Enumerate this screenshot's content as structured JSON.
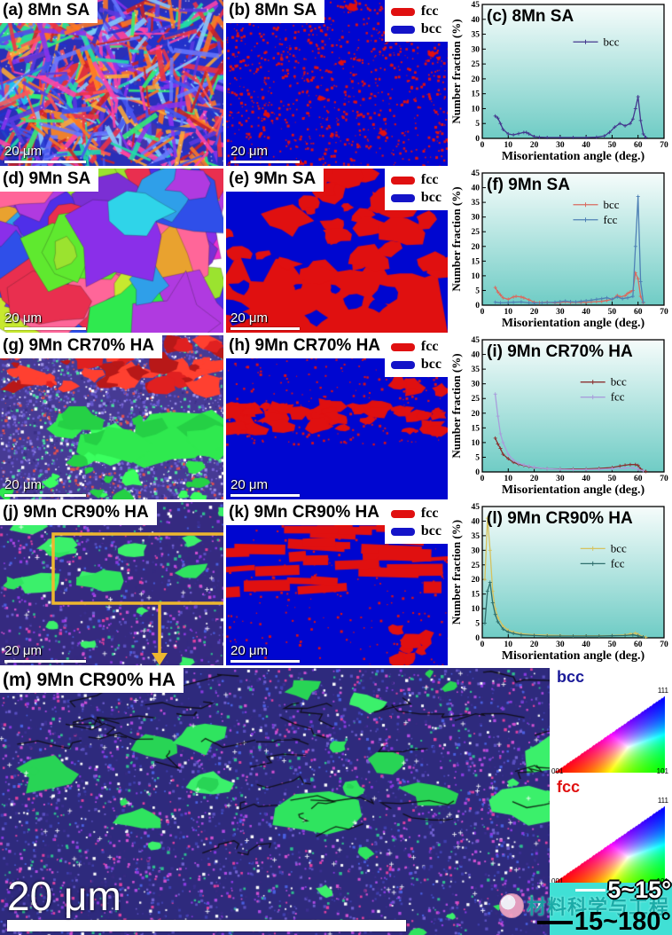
{
  "panels": {
    "a": {
      "label": "(a) 8Mn SA",
      "scalebar": "20 μm",
      "texture": {
        "seed": 11,
        "mode": "laths",
        "bg": "#2a2fb8",
        "palette": [
          "#2233cc",
          "#4455ee",
          "#5a3ae0",
          "#ee3344",
          "#ff7722",
          "#22ddaa",
          "#33ee77",
          "#ff44aa",
          "#88ccff",
          "#ffaa33",
          "#cc2222",
          "#6677ff",
          "#8833ee",
          "#ff5555"
        ],
        "patches": [
          [
            "#2fe98f",
            0.13,
            0.17,
            0.2,
            0.13
          ],
          [
            "#22ccee",
            0.05,
            0.55,
            0.12,
            0.1
          ],
          [
            "#ee3333",
            0.38,
            0.5,
            0.22,
            0.13
          ],
          [
            "#ff8822",
            0.28,
            0.76,
            0.16,
            0.1
          ],
          [
            "#2233cc",
            0.78,
            0.36,
            0.3,
            0.26
          ],
          [
            "#4433aa",
            0.62,
            0.82,
            0.22,
            0.13
          ],
          [
            "#ff4499",
            0.52,
            0.22,
            0.1,
            0.08
          ]
        ]
      }
    },
    "b": {
      "label": "(b) 8Mn SA",
      "scalebar": "20 μm",
      "legend_fcc": "fcc",
      "legend_bcc": "bcc",
      "fcc_color": "#e01010",
      "bcc_color": "#1414c8",
      "texture": {
        "seed": 66,
        "mode": "dots",
        "bg": "#0006d0",
        "fg": "#e01010",
        "count": 950
      }
    },
    "c": {
      "title": "(c) 8Mn SA"
    },
    "d": {
      "label": "(d) 9Mn SA",
      "scalebar": "20 μm",
      "texture": {
        "seed": 22,
        "mode": "grains",
        "bg": "#ffffff",
        "palette": [
          "#7b2fd4",
          "#b03ae0",
          "#2fe94f",
          "#9be32f",
          "#2f4fe9",
          "#e92f4f",
          "#2fd4e9",
          "#e9a22f",
          "#e92fd4",
          "#5fe92f",
          "#4f2fe9",
          "#ff6699",
          "#c7e92f",
          "#2f9fe9",
          "#8a2fe9"
        ]
      }
    },
    "e": {
      "label": "(e) 9Mn SA",
      "scalebar": "20 μm",
      "legend_fcc": "fcc",
      "legend_bcc": "bcc",
      "fcc_color": "#e01010",
      "bcc_color": "#1414c8",
      "texture": {
        "seed": 77,
        "mode": "mass",
        "bg": "#0006d0",
        "fg": "#e01010"
      }
    },
    "f": {
      "title": "(f) 9Mn SA"
    },
    "g": {
      "label": "(g) 9Mn CR70% HA",
      "scalebar": "20 μm",
      "texture": {
        "seed": 33,
        "mode": "crbands",
        "bg": "#463a94",
        "palette": [
          "#5a4fc0",
          "#7a66d8",
          "#3a2f85",
          "#ffffff",
          "#9b8fe8",
          "#4adf9f",
          "#e05050",
          "#6a5ad0"
        ],
        "red": [
          "#e02020",
          "#ff4030",
          "#b81818"
        ],
        "green": [
          "#2fe94f",
          "#3aff5f",
          "#25d045"
        ]
      }
    },
    "h": {
      "label": "(h) 9Mn CR70% HA",
      "scalebar": "20 μm",
      "legend_fcc": "fcc",
      "legend_bcc": "bcc",
      "fcc_color": "#e01010",
      "bcc_color": "#1414c8",
      "texture": {
        "seed": 88,
        "mode": "band",
        "bg": "#0006d0",
        "fg": "#e01010"
      }
    },
    "i": {
      "title": "(i) 9Mn CR70% HA"
    },
    "j": {
      "label": "(j) 9Mn CR90% HA",
      "scalebar": "20 μm",
      "annotation_color": "#edb72f",
      "texture": {
        "seed": 44,
        "mode": "speckle",
        "bg": "#352a80",
        "palette": [
          "#5a4fc0",
          "#8a3ae0",
          "#b04ae0",
          "#3a2f90",
          "#ffffff",
          "#e040a0",
          "#4a5fe0",
          "#7060d0",
          "#352a80",
          "#2fbf8f",
          "#d050d0"
        ],
        "green": [
          "#2fe45f",
          "#3bf06b"
        ],
        "greens": [
          9,
          0.1,
          0.45,
          10,
          18
        ]
      }
    },
    "k": {
      "label": "(k) 9Mn CR90% HA",
      "scalebar": "20 μm",
      "legend_fcc": "fcc",
      "legend_bcc": "bcc",
      "fcc_color": "#e01010",
      "bcc_color": "#1414c8",
      "texture": {
        "seed": 99,
        "mode": "streaks",
        "bg": "#0006d0",
        "fg": "#e01010"
      }
    },
    "l": {
      "title": "(l) 9Mn CR90% HA"
    },
    "m": {
      "label": "(m) 9Mn CR90% HA",
      "scalebar": "20 μm",
      "texture": {
        "seed": 55,
        "mode": "speckle",
        "bg": "#2e2a7d",
        "palette": [
          "#5a4fc0",
          "#8a3ae0",
          "#b04ae0",
          "#3a2f90",
          "#ffffff",
          "#e040a0",
          "#4a5fe0",
          "#7060d0",
          "#352a80",
          "#2fbf8f",
          "#d050d0",
          "#4040b0"
        ],
        "green": [
          "#2fe45f",
          "#3bf06b",
          "#28d455"
        ],
        "greens": [
          14,
          0.05,
          0.55,
          16,
          36
        ],
        "squiggles": true
      }
    }
  },
  "color_key": {
    "bcc_label": "bcc",
    "fcc_label": "fcc",
    "bcc_label_color": "#1a1a99",
    "fcc_label_color": "#e01010",
    "corner_001": "001",
    "corner_101": "101",
    "corner_111": "111"
  },
  "boundary_legend": {
    "low": "5~15°",
    "high": "15~180°",
    "low_color": "#ffffff",
    "high_color": "#000000",
    "strip_color": "#40e0d5"
  },
  "watermark": {
    "text": "材料科学与工程",
    "color": "#18a7a4"
  },
  "chart_data": [
    {
      "panel": "c",
      "type": "line",
      "title": "(c) 8Mn SA",
      "xlabel": "Misorientation angle (deg.)",
      "ylabel": "Number fraction (%)",
      "xlim": [
        0,
        70
      ],
      "ylim": [
        0,
        45
      ],
      "xtick": 10,
      "ytick": 5,
      "bg_top": "#f6fcfb",
      "bg_bottom": "#6fccc5",
      "grid": false,
      "legend_pos": [
        0.5,
        0.28
      ],
      "series": [
        {
          "name": "bcc",
          "color": "#44388e",
          "x": [
            5,
            6,
            7,
            8,
            10,
            12,
            14,
            16,
            17,
            18,
            20,
            22,
            25,
            30,
            35,
            40,
            44,
            47,
            49,
            51,
            53,
            55,
            57,
            58,
            59,
            60,
            61,
            62,
            63
          ],
          "y": [
            7.5,
            6.8,
            5.0,
            3.0,
            1.5,
            1.2,
            1.6,
            2.0,
            2.0,
            1.5,
            0.6,
            0.4,
            0.3,
            0.3,
            0.3,
            0.3,
            0.4,
            0.8,
            2.0,
            3.8,
            5.0,
            4.2,
            5.0,
            6.5,
            10.0,
            14.0,
            6.0,
            1.5,
            0.3
          ]
        }
      ]
    },
    {
      "panel": "f",
      "type": "line",
      "title": "(f) 9Mn SA",
      "xlabel": "Misorientation angle (deg.)",
      "ylabel": "Number fraction (%)",
      "xlim": [
        0,
        70
      ],
      "ylim": [
        0,
        45
      ],
      "xtick": 10,
      "ytick": 5,
      "bg_top": "#f6fcfb",
      "bg_bottom": "#6fccc5",
      "grid": false,
      "legend_pos": [
        0.5,
        0.24
      ],
      "series": [
        {
          "name": "bcc",
          "color": "#d96a5f",
          "x": [
            5,
            6,
            7,
            8,
            10,
            12,
            13,
            15,
            16,
            18,
            20,
            22,
            25,
            28,
            30,
            32,
            34,
            36,
            38,
            40,
            42,
            44,
            46,
            48,
            50,
            52,
            53,
            55,
            56,
            57,
            58,
            59,
            60,
            61,
            62
          ],
          "y": [
            6.0,
            4.5,
            3.5,
            2.5,
            2.0,
            2.8,
            3.0,
            2.8,
            2.5,
            1.8,
            1.0,
            0.8,
            1.0,
            0.8,
            0.9,
            1.1,
            0.9,
            1.0,
            0.9,
            1.0,
            1.1,
            1.2,
            1.3,
            1.6,
            2.0,
            3.3,
            2.8,
            3.2,
            4.0,
            4.5,
            5.0,
            11.0,
            9.0,
            3.0,
            0.8
          ]
        },
        {
          "name": "fcc",
          "color": "#4f81b5",
          "x": [
            5,
            7,
            10,
            12,
            15,
            18,
            20,
            23,
            25,
            28,
            30,
            32,
            34,
            36,
            38,
            40,
            42,
            44,
            46,
            48,
            50,
            52,
            54,
            56,
            58,
            59,
            60,
            61,
            62
          ],
          "y": [
            1.0,
            0.8,
            0.9,
            1.0,
            1.1,
            0.8,
            0.7,
            0.8,
            0.9,
            1.0,
            1.2,
            1.4,
            1.2,
            1.1,
            1.3,
            1.5,
            1.7,
            2.0,
            2.2,
            2.5,
            2.0,
            2.8,
            2.2,
            2.5,
            3.0,
            20.0,
            37.0,
            8.0,
            1.0
          ]
        }
      ]
    },
    {
      "panel": "i",
      "type": "line",
      "title": "(i) 9Mn CR70% HA",
      "xlabel": "Misorientation angle (deg.)",
      "ylabel": "Number fraction (%)",
      "xlim": [
        0,
        70
      ],
      "ylim": [
        0,
        45
      ],
      "xtick": 10,
      "ytick": 5,
      "bg_top": "#f6fcfb",
      "bg_bottom": "#6fccc5",
      "grid": false,
      "legend_pos": [
        0.54,
        0.32
      ],
      "series": [
        {
          "name": "bcc",
          "color": "#8a3030",
          "x": [
            5,
            6,
            7,
            8,
            10,
            12,
            14,
            16,
            18,
            20,
            25,
            30,
            35,
            40,
            45,
            50,
            53,
            55,
            57,
            59,
            60,
            61,
            62,
            63
          ],
          "y": [
            11.5,
            9.5,
            8.0,
            6.0,
            4.5,
            3.3,
            2.6,
            2.2,
            1.8,
            1.5,
            1.1,
            1.0,
            1.0,
            1.0,
            1.2,
            1.5,
            2.0,
            2.3,
            2.5,
            2.5,
            2.2,
            1.0,
            0.4,
            0.2
          ]
        },
        {
          "name": "fcc",
          "color": "#a89ddb",
          "x": [
            5,
            6,
            7,
            8,
            10,
            12,
            14,
            16,
            18,
            20,
            25,
            30,
            35,
            40,
            45,
            50,
            55,
            58,
            60,
            62
          ],
          "y": [
            26.5,
            19.0,
            13.0,
            10.0,
            6.0,
            4.0,
            3.0,
            2.4,
            2.0,
            1.6,
            1.1,
            0.9,
            0.8,
            0.8,
            0.9,
            1.1,
            1.3,
            1.4,
            0.9,
            0.4
          ]
        }
      ]
    },
    {
      "panel": "l",
      "type": "line",
      "title": "(l) 9Mn CR90% HA",
      "xlabel": "Misorientation angle (deg.)",
      "ylabel": "Number fraction (%)",
      "xlim": [
        0,
        70
      ],
      "ylim": [
        0,
        45
      ],
      "xtick": 10,
      "ytick": 5,
      "bg_top": "#f6fcfb",
      "bg_bottom": "#6fccc5",
      "grid": false,
      "legend_pos": [
        0.54,
        0.32
      ],
      "series": [
        {
          "name": "bcc",
          "color": "#d6c25e",
          "x": [
            1,
            2,
            3,
            4,
            5,
            6,
            8,
            10,
            12,
            15,
            20,
            25,
            30,
            35,
            40,
            45,
            50,
            55,
            57,
            59,
            60,
            62,
            63
          ],
          "y": [
            20.0,
            41.0,
            30.0,
            16.0,
            10.0,
            7.0,
            4.0,
            2.6,
            2.0,
            1.4,
            1.0,
            0.9,
            0.8,
            0.7,
            0.7,
            0.7,
            0.8,
            1.0,
            1.3,
            1.6,
            1.2,
            0.4,
            0.2
          ]
        },
        {
          "name": "fcc",
          "color": "#2f6f6d",
          "x": [
            1,
            2,
            3,
            4,
            5,
            6,
            8,
            10,
            12,
            15,
            20,
            25,
            30,
            35,
            40,
            45,
            50,
            55,
            58,
            60,
            62
          ],
          "y": [
            5.0,
            16.0,
            19.0,
            12.0,
            8.0,
            5.5,
            3.0,
            2.0,
            1.5,
            1.0,
            0.8,
            0.6,
            0.6,
            0.6,
            0.6,
            0.6,
            0.7,
            0.8,
            1.0,
            0.7,
            0.3
          ]
        }
      ]
    }
  ]
}
